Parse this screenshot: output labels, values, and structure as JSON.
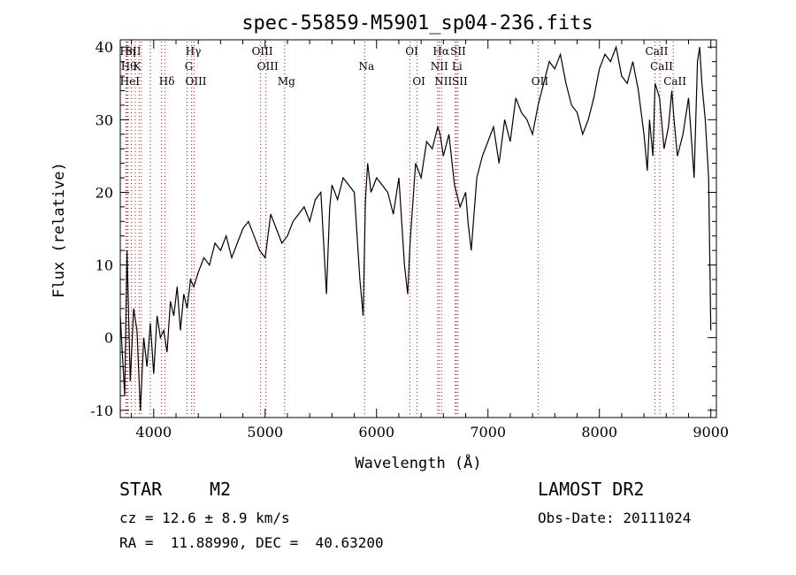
{
  "chart_data": {
    "type": "line",
    "title": "spec-55859-M5901_sp04-236.fits",
    "xlabel": "Wavelength (Å)",
    "ylabel": "Flux (relative)",
    "xlim": [
      3700,
      9050
    ],
    "ylim": [
      -11,
      41
    ],
    "xticks": [
      4000,
      5000,
      6000,
      7000,
      8000,
      9000
    ],
    "yticks": [
      -10,
      0,
      10,
      20,
      30,
      40
    ],
    "grid": false,
    "line_color": "#000000",
    "marker_color": "#cc0000",
    "series": [
      {
        "x": [
          3700,
          3740,
          3760,
          3790,
          3820,
          3850,
          3880,
          3910,
          3940,
          3970,
          4000,
          4030,
          4060,
          4090,
          4120,
          4150,
          4180,
          4210,
          4240,
          4270,
          4300,
          4330,
          4360,
          4400,
          4450,
          4500,
          4550,
          4600,
          4650,
          4700,
          4750,
          4800,
          4850,
          4900,
          4950,
          5000,
          5050,
          5100,
          5150,
          5200,
          5250,
          5300,
          5350,
          5400,
          5450,
          5500,
          5550,
          5580,
          5600,
          5650,
          5700,
          5750,
          5800,
          5850,
          5880,
          5900,
          5920,
          5950,
          6000,
          6050,
          6100,
          6150,
          6200,
          6250,
          6280,
          6300,
          6350,
          6400,
          6450,
          6500,
          6550,
          6570,
          6600,
          6650,
          6700,
          6750,
          6800,
          6820,
          6850,
          6900,
          6950,
          7000,
          7050,
          7100,
          7150,
          7200,
          7250,
          7300,
          7350,
          7400,
          7450,
          7500,
          7550,
          7600,
          7650,
          7700,
          7750,
          7800,
          7850,
          7900,
          7950,
          8000,
          8050,
          8100,
          8150,
          8200,
          8250,
          8300,
          8350,
          8400,
          8430,
          8450,
          8480,
          8500,
          8540,
          8580,
          8620,
          8650,
          8670,
          8700,
          8750,
          8800,
          8850,
          8880,
          8900,
          8920,
          8950,
          8980,
          9000
        ],
        "y": [
          3,
          -8,
          12,
          -6,
          4,
          1,
          -10,
          0,
          -4,
          2,
          -5,
          3,
          0,
          1,
          -2,
          5,
          3,
          7,
          1,
          6,
          4,
          8,
          7,
          9,
          11,
          10,
          13,
          12,
          14,
          11,
          13,
          15,
          16,
          14,
          12,
          11,
          17,
          15,
          13,
          14,
          16,
          17,
          18,
          16,
          19,
          20,
          6,
          18,
          21,
          19,
          22,
          21,
          20,
          8,
          3,
          19,
          24,
          20,
          22,
          21,
          20,
          17,
          22,
          10,
          6,
          13,
          24,
          22,
          27,
          26,
          29,
          28,
          25,
          28,
          21,
          18,
          20,
          16,
          12,
          22,
          25,
          27,
          29,
          24,
          30,
          27,
          33,
          31,
          30,
          28,
          32,
          35,
          38,
          37,
          39,
          35,
          32,
          31,
          28,
          30,
          33,
          37,
          39,
          38,
          40,
          36,
          35,
          38,
          34,
          28,
          23,
          30,
          25,
          35,
          33,
          26,
          29,
          34,
          30,
          25,
          28,
          33,
          22,
          38,
          40,
          35,
          30,
          22,
          1
        ]
      }
    ],
    "line_markers": [
      {
        "x": 3750,
        "label": "Hη",
        "row": 0
      },
      {
        "x": 3760,
        "label": "Hθ",
        "row": 1
      },
      {
        "x": 3770,
        "label": "HeI",
        "row": 2
      },
      {
        "x": 3800,
        "label": "SII",
        "row": 0
      },
      {
        "x": 3834,
        "label": "K",
        "row": 1
      },
      {
        "x": 3869,
        "label": "",
        "row": 0
      },
      {
        "x": 3889,
        "label": "",
        "row": 0
      },
      {
        "x": 3969,
        "label": "",
        "row": 0
      },
      {
        "x": 4070,
        "label": "",
        "row": 0
      },
      {
        "x": 4102,
        "label": "Hδ",
        "row": 2
      },
      {
        "x": 4300,
        "label": "G",
        "row": 1
      },
      {
        "x": 4340,
        "label": "Hγ",
        "row": 0
      },
      {
        "x": 4363,
        "label": "OIII",
        "row": 2
      },
      {
        "x": 4959,
        "label": "OIII",
        "row": 0
      },
      {
        "x": 5007,
        "label": "OIII",
        "row": 1
      },
      {
        "x": 5175,
        "label": "Mg",
        "row": 2
      },
      {
        "x": 5893,
        "label": "Na",
        "row": 1
      },
      {
        "x": 6300,
        "label": "OI",
        "row": 0
      },
      {
        "x": 6364,
        "label": "OI",
        "row": 2
      },
      {
        "x": 6548,
        "label": "NII",
        "row": 1
      },
      {
        "x": 6563,
        "label": "Hα",
        "row": 0
      },
      {
        "x": 6583,
        "label": "NII",
        "row": 2
      },
      {
        "x": 6707,
        "label": "Li",
        "row": 1
      },
      {
        "x": 6716,
        "label": "SII",
        "row": 0
      },
      {
        "x": 6731,
        "label": "SII",
        "row": 2
      },
      {
        "x": 7450,
        "label": "OII",
        "row": 2
      },
      {
        "x": 8498,
        "label": "CaII",
        "row": 0
      },
      {
        "x": 8542,
        "label": "CaII",
        "row": 1
      },
      {
        "x": 8662,
        "label": "CaII",
        "row": 2
      }
    ]
  },
  "info": {
    "class_label": "STAR",
    "subclass_label": "M2",
    "survey": "LAMOST DR2",
    "cz": "cz = 12.6 ± 8.9 km/s",
    "obs_date": "Obs-Date: 20111024",
    "coords": "RA =  11.88990, DEC =  40.63200"
  }
}
